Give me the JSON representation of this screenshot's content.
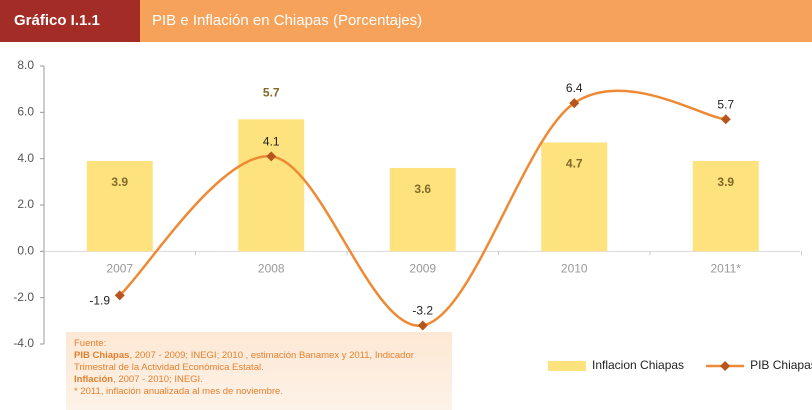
{
  "header": {
    "badge": "Gráfico I.1.1"
  },
  "chart_data": {
    "type": "bar",
    "title": "PIB e Inflación en Chiapas (Porcentajes)",
    "categories": [
      "2007",
      "2008",
      "2009",
      "2010",
      "2011*"
    ],
    "series": [
      {
        "name": "Inflacion Chiapas",
        "type": "bar",
        "color": "#fde27e",
        "values": [
          3.9,
          5.7,
          3.6,
          4.7,
          3.9
        ]
      },
      {
        "name": "PIB Chiapas",
        "type": "line",
        "color": "#ee8a35",
        "marker_color": "#b8551c",
        "values": [
          -1.9,
          4.1,
          -3.2,
          6.4,
          5.7
        ]
      }
    ],
    "ylim": [
      -4,
      8
    ],
    "yticks": [
      {
        "value": -4,
        "label": "-4.0"
      },
      {
        "value": -2,
        "label": "-2.0"
      },
      {
        "value": 0,
        "label": "0.0"
      },
      {
        "value": 2,
        "label": "2.0"
      },
      {
        "value": 4,
        "label": "4.0"
      },
      {
        "value": 6,
        "label": "6.0"
      },
      {
        "value": 8,
        "label": "8.0"
      }
    ],
    "grid": false,
    "legend": "bottom-right"
  },
  "source_note": {
    "label": "Fuente:",
    "lines": [
      {
        "bold": "PIB Chiapas",
        "text": ", 2007 - 2009; INEGI; 2010 , estimación Banamex y 2011, Indicador Trimestral de la Actividad Económica Estatal."
      },
      {
        "bold": "Inflación",
        "text": ", 2007 - 2010; INEGI."
      },
      {
        "text": "* 2011, inflación anualizada al mes de  noviembre."
      }
    ]
  }
}
